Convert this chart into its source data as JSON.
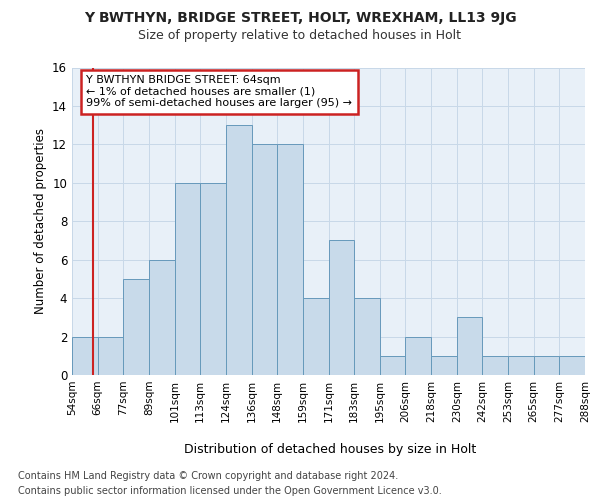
{
  "title_line1": "Y BWTHYN, BRIDGE STREET, HOLT, WREXHAM, LL13 9JG",
  "title_line2": "Size of property relative to detached houses in Holt",
  "xlabel": "Distribution of detached houses by size in Holt",
  "ylabel": "Number of detached properties",
  "bin_edges": [
    "54sqm",
    "66sqm",
    "77sqm",
    "89sqm",
    "101sqm",
    "113sqm",
    "124sqm",
    "136sqm",
    "148sqm",
    "159sqm",
    "171sqm",
    "183sqm",
    "195sqm",
    "206sqm",
    "218sqm",
    "230sqm",
    "242sqm",
    "253sqm",
    "265sqm",
    "277sqm",
    "288sqm"
  ],
  "bar_values": [
    2,
    2,
    5,
    6,
    10,
    10,
    13,
    12,
    12,
    4,
    7,
    4,
    1,
    2,
    1,
    3,
    1,
    1,
    1,
    1
  ],
  "bar_color": "#c8daea",
  "bar_edge_color": "#6699bb",
  "annotation_title": "Y BWTHYN BRIDGE STREET: 64sqm",
  "annotation_line1": "← 1% of detached houses are smaller (1)",
  "annotation_line2": "99% of semi-detached houses are larger (95) →",
  "vline_color": "#cc2222",
  "grid_color": "#c8d8e8",
  "bg_color": "#e8f0f8",
  "footer_line1": "Contains HM Land Registry data © Crown copyright and database right 2024.",
  "footer_line2": "Contains public sector information licensed under the Open Government Licence v3.0.",
  "ylim_max": 16,
  "yticks": [
    0,
    2,
    4,
    6,
    8,
    10,
    12,
    14,
    16
  ]
}
